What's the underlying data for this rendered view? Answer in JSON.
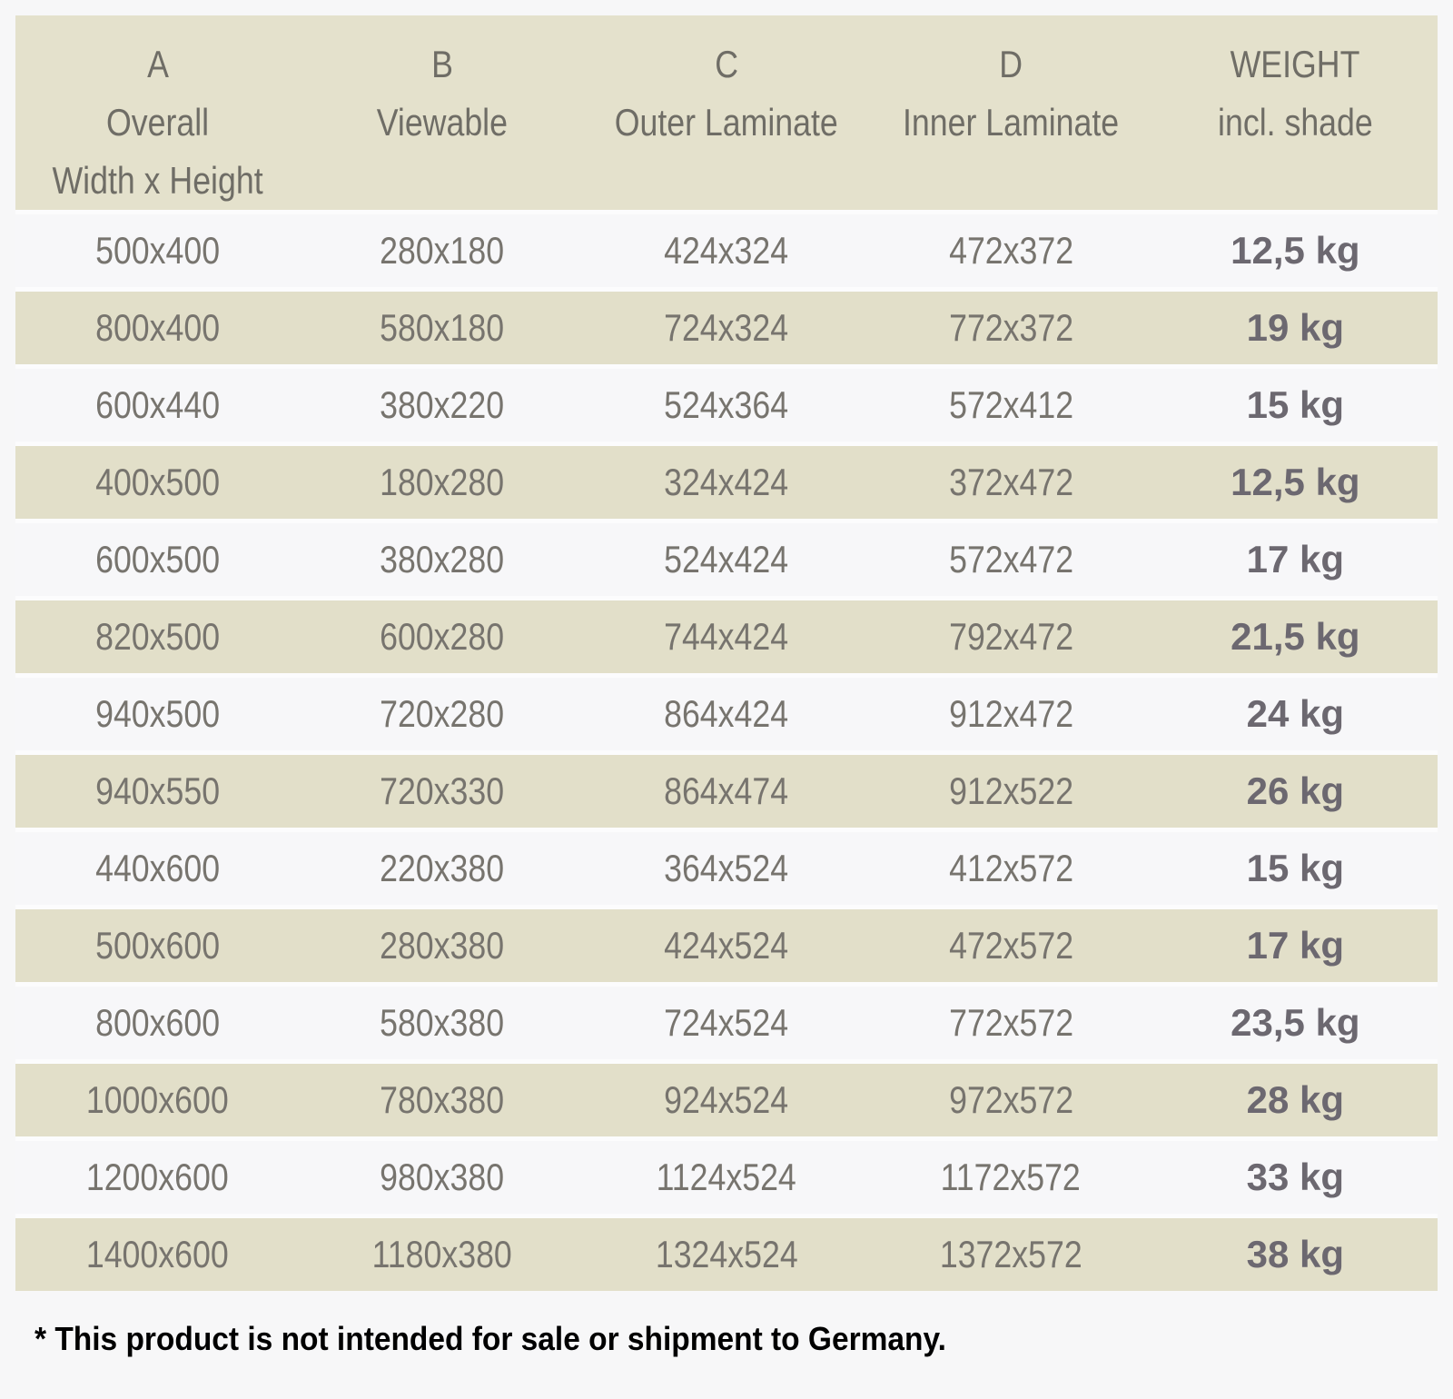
{
  "colors": {
    "header_bg": "#e4e1cc",
    "row_beige": "#e2dfc9",
    "row_light": "#f7f7f9",
    "separator": "#fcfcfd",
    "dim_text": "#77746e",
    "weight_text": "#6c6870",
    "header_text": "#6f6d66",
    "footnote_text": "#000000",
    "page_bg": "#f7f7f8"
  },
  "table": {
    "columns": [
      {
        "letter": "A",
        "label": "Overall",
        "sublabel": "Width x Height"
      },
      {
        "letter": "B",
        "label": "Viewable",
        "sublabel": ""
      },
      {
        "letter": "C",
        "label": "Outer Laminate",
        "sublabel": ""
      },
      {
        "letter": "D",
        "label": "Inner Laminate",
        "sublabel": ""
      },
      {
        "letter": "WEIGHT",
        "label": "incl. shade",
        "sublabel": ""
      }
    ],
    "rows": [
      {
        "overall": "500x400",
        "viewable": "280x180",
        "outer_laminate": "424x324",
        "inner_laminate": "472x372",
        "weight": "12,5 kg"
      },
      {
        "overall": "800x400",
        "viewable": "580x180",
        "outer_laminate": "724x324",
        "inner_laminate": "772x372",
        "weight": "19 kg"
      },
      {
        "overall": "600x440",
        "viewable": "380x220",
        "outer_laminate": "524x364",
        "inner_laminate": "572x412",
        "weight": "15 kg"
      },
      {
        "overall": "400x500",
        "viewable": "180x280",
        "outer_laminate": "324x424",
        "inner_laminate": "372x472",
        "weight": "12,5 kg"
      },
      {
        "overall": "600x500",
        "viewable": "380x280",
        "outer_laminate": "524x424",
        "inner_laminate": "572x472",
        "weight": "17 kg"
      },
      {
        "overall": "820x500",
        "viewable": "600x280",
        "outer_laminate": "744x424",
        "inner_laminate": "792x472",
        "weight": "21,5 kg"
      },
      {
        "overall": "940x500",
        "viewable": "720x280",
        "outer_laminate": "864x424",
        "inner_laminate": "912x472",
        "weight": "24 kg"
      },
      {
        "overall": "940x550",
        "viewable": "720x330",
        "outer_laminate": "864x474",
        "inner_laminate": "912x522",
        "weight": "26 kg"
      },
      {
        "overall": "440x600",
        "viewable": "220x380",
        "outer_laminate": "364x524",
        "inner_laminate": "412x572",
        "weight": "15 kg"
      },
      {
        "overall": "500x600",
        "viewable": "280x380",
        "outer_laminate": "424x524",
        "inner_laminate": "472x572",
        "weight": "17 kg"
      },
      {
        "overall": "800x600",
        "viewable": "580x380",
        "outer_laminate": "724x524",
        "inner_laminate": "772x572",
        "weight": "23,5 kg"
      },
      {
        "overall": "1000x600",
        "viewable": "780x380",
        "outer_laminate": "924x524",
        "inner_laminate": "972x572",
        "weight": "28 kg"
      },
      {
        "overall": "1200x600",
        "viewable": "980x380",
        "outer_laminate": "1124x524",
        "inner_laminate": "1172x572",
        "weight": "33 kg"
      },
      {
        "overall": "1400x600",
        "viewable": "1180x380",
        "outer_laminate": "1324x524",
        "inner_laminate": "1372x572",
        "weight": "38 kg"
      }
    ]
  },
  "footnote": "* This product is not intended for sale or shipment to Germany."
}
